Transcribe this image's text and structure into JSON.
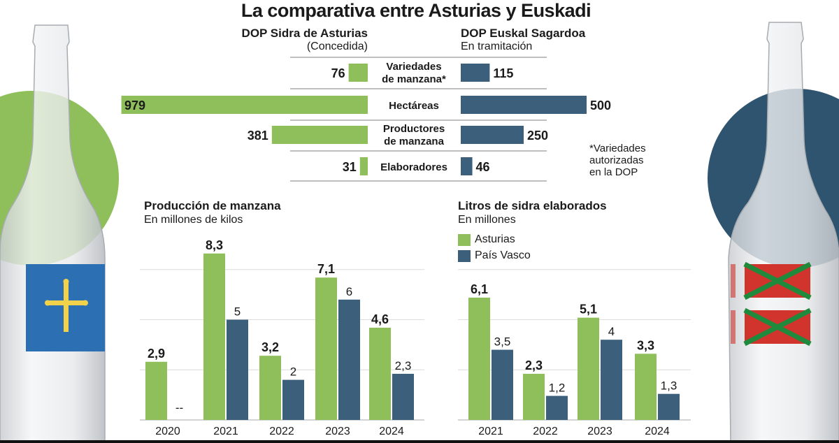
{
  "title": "La comparativa entre Asturias y Euskadi",
  "colors": {
    "asturias": "#8fbf5a",
    "pais_vasco": "#3c5f7b",
    "circle_left": "#8fbf5a",
    "circle_right": "#2f5470",
    "flag_asturias": "#2d6fb3",
    "flag_cross": "#f2d24b",
    "ikurrina_red": "#d0342c",
    "ikurrina_green": "#1f8a3c"
  },
  "comparison": {
    "left_header": "DOP Sidra de Asturias",
    "left_sub": "(Concedida)",
    "right_header": "DOP Euskal Sagardoa",
    "right_sub": "En tramitación",
    "footnote": [
      "*Variedades",
      "autorizadas",
      "en la DOP"
    ],
    "rows": [
      {
        "label": [
          "Variedades",
          "de manzana*"
        ],
        "asturias": 76,
        "pais_vasco": 115
      },
      {
        "label": [
          "Hectáreas"
        ],
        "asturias": 979,
        "pais_vasco": 500
      },
      {
        "label": [
          "Productores",
          "de manzana"
        ],
        "asturias": 381,
        "pais_vasco": 250
      },
      {
        "label": [
          "Elaboradores"
        ],
        "asturias": 31,
        "pais_vasco": 46
      }
    ]
  },
  "chart_data": [
    {
      "type": "bar",
      "title": "Producción de manzana",
      "subtitle": "En millones de kilos",
      "categories": [
        "2020",
        "2021",
        "2022",
        "2023",
        "2024"
      ],
      "series": [
        {
          "name": "Asturias",
          "values": [
            2.9,
            8.3,
            3.2,
            7.1,
            4.6
          ],
          "labels": [
            "2,9",
            "8,3",
            "3,2",
            "7,1",
            "4,6"
          ]
        },
        {
          "name": "País Vasco",
          "values": [
            null,
            5,
            2,
            6,
            2.3
          ],
          "labels": [
            "--",
            "5",
            "2",
            "6",
            "2,3"
          ]
        }
      ],
      "ylim": [
        0,
        8.5
      ],
      "grid": true,
      "gridlines": [
        2.5,
        5,
        7.5
      ]
    },
    {
      "type": "bar",
      "title": "Litros de sidra elaborados",
      "subtitle": "En millones",
      "legend": [
        "Asturias",
        "País Vasco"
      ],
      "legend_position": "top-left",
      "categories": [
        "2021",
        "2022",
        "2023",
        "2024"
      ],
      "series": [
        {
          "name": "Asturias",
          "values": [
            6.1,
            2.3,
            5.1,
            3.3
          ],
          "labels": [
            "6,1",
            "2,3",
            "5,1",
            "3,3"
          ]
        },
        {
          "name": "País Vasco",
          "values": [
            3.5,
            1.2,
            4,
            1.3
          ],
          "labels": [
            "3,5",
            "1,2",
            "4",
            "1,3"
          ]
        }
      ],
      "ylim": [
        0,
        8.5
      ],
      "grid": true,
      "gridlines": [
        2.5,
        5,
        7.5
      ]
    }
  ]
}
